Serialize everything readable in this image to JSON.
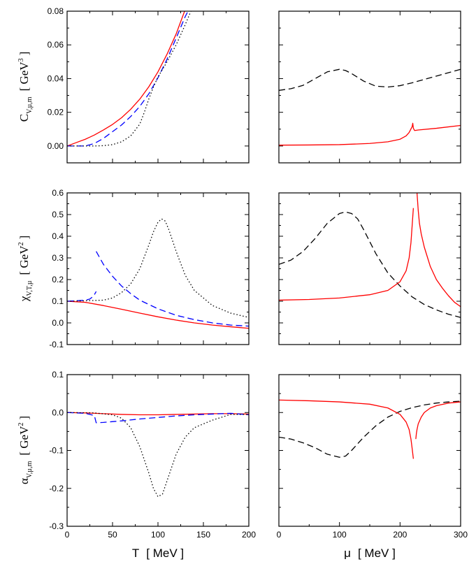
{
  "chart_data": [
    {
      "panel": "top-left",
      "type": "line",
      "ylabel": "C",
      "ylabel_sub": "V,µ,m",
      "ylabel_unit": "[ GeV",
      "ylabel_sup": "3",
      "ylabel_end": "]",
      "xlim": [
        0,
        200
      ],
      "ylim": [
        -0.01,
        0.08
      ],
      "xticks": [
        0,
        50,
        100,
        150,
        200
      ],
      "yticks": [
        0.0,
        0.02,
        0.04,
        0.06,
        0.08
      ],
      "ytick_labels": [
        "0.00",
        "0.02",
        "0.04",
        "0.06",
        "0.08"
      ],
      "series": [
        {
          "name": "C_V",
          "color": "#ff0000",
          "style": "solid",
          "x": [
            0,
            10,
            20,
            30,
            40,
            50,
            60,
            70,
            80,
            90,
            100,
            110,
            120,
            130
          ],
          "y": [
            0.0,
            0.002,
            0.004,
            0.0065,
            0.0095,
            0.0128,
            0.0168,
            0.0218,
            0.0278,
            0.0352,
            0.044,
            0.0545,
            0.0665,
            0.081
          ]
        },
        {
          "name": "C_mu",
          "color": "#0000ff",
          "style": "dashed",
          "x": [
            0,
            20,
            30,
            40,
            50,
            60,
            70,
            80,
            90,
            100,
            110,
            120,
            130,
            135
          ],
          "y": [
            0.0,
            0.0,
            0.0015,
            0.0045,
            0.0085,
            0.0125,
            0.0175,
            0.0235,
            0.031,
            0.0405,
            0.0515,
            0.064,
            0.0768,
            0.082
          ]
        },
        {
          "name": "C_m",
          "color": "#000000",
          "style": "dotted",
          "x": [
            0,
            30,
            40,
            50,
            60,
            70,
            80,
            85,
            90,
            95,
            100,
            110,
            120,
            130,
            137
          ],
          "y": [
            0.0,
            0.0,
            0.0002,
            0.0008,
            0.0025,
            0.006,
            0.013,
            0.02,
            0.028,
            0.035,
            0.041,
            0.05,
            0.06,
            0.072,
            0.081
          ]
        }
      ]
    },
    {
      "panel": "top-right",
      "type": "line",
      "xlim": [
        0,
        300
      ],
      "ylim": [
        -0.01,
        0.08
      ],
      "xticks": [
        0,
        100,
        200,
        300
      ],
      "series": [
        {
          "name": "dashed",
          "color": "#000000",
          "style": "dashed",
          "x": [
            0,
            20,
            40,
            60,
            80,
            100,
            110,
            120,
            140,
            160,
            180,
            200,
            220,
            240,
            260,
            280,
            300
          ],
          "y": [
            0.033,
            0.034,
            0.036,
            0.04,
            0.044,
            0.0455,
            0.0448,
            0.043,
            0.0385,
            0.0355,
            0.035,
            0.0358,
            0.0375,
            0.0395,
            0.0415,
            0.0435,
            0.0455
          ]
        },
        {
          "name": "solid",
          "color": "#ff0000",
          "style": "solid",
          "x": [
            0,
            50,
            100,
            150,
            180,
            200,
            210,
            215,
            220,
            221,
            222,
            224,
            230,
            260,
            300
          ],
          "y": [
            0.0005,
            0.0006,
            0.0008,
            0.0015,
            0.0025,
            0.004,
            0.006,
            0.008,
            0.0115,
            0.0135,
            0.0105,
            0.0092,
            0.0095,
            0.0105,
            0.0122
          ]
        }
      ]
    },
    {
      "panel": "middle-left",
      "type": "line",
      "ylabel": "χ",
      "ylabel_sub": "V,T,µ",
      "ylabel_unit": "[ GeV",
      "ylabel_sup": "2",
      "ylabel_end": "]",
      "xlim": [
        0,
        200
      ],
      "ylim": [
        -0.1,
        0.6
      ],
      "xticks": [
        0,
        50,
        100,
        150,
        200
      ],
      "yticks": [
        -0.1,
        0.0,
        0.1,
        0.2,
        0.3,
        0.4,
        0.5,
        0.6
      ],
      "ytick_labels": [
        "-0.1",
        "0.0",
        "0.1",
        "0.2",
        "0.3",
        "0.4",
        "0.5",
        "0.6"
      ],
      "series": [
        {
          "name": "chi_V",
          "color": "#ff0000",
          "style": "solid",
          "x": [
            0,
            20,
            40,
            60,
            80,
            100,
            120,
            140,
            160,
            180,
            200
          ],
          "y": [
            0.1,
            0.095,
            0.08,
            0.063,
            0.045,
            0.028,
            0.013,
            0.0,
            -0.01,
            -0.018,
            -0.025
          ]
        },
        {
          "name": "chi_mu_lower",
          "color": "#0000ff",
          "style": "dashed",
          "x": [
            0,
            10,
            20,
            25,
            28,
            30,
            32
          ],
          "y": [
            0.1,
            0.102,
            0.105,
            0.11,
            0.12,
            0.13,
            0.145
          ]
        },
        {
          "name": "chi_mu_upper",
          "color": "#0000ff",
          "style": "dashed",
          "x": [
            32,
            40,
            50,
            60,
            70,
            80,
            100,
            120,
            140,
            160,
            180,
            200
          ],
          "y": [
            0.33,
            0.27,
            0.215,
            0.17,
            0.135,
            0.105,
            0.065,
            0.035,
            0.015,
            0.0,
            -0.01,
            -0.015
          ]
        },
        {
          "name": "chi_T",
          "color": "#000000",
          "style": "dotted",
          "x": [
            0,
            20,
            40,
            50,
            60,
            70,
            80,
            90,
            95,
            100,
            104,
            108,
            112,
            120,
            130,
            140,
            160,
            180,
            200
          ],
          "y": [
            0.1,
            0.102,
            0.105,
            0.115,
            0.14,
            0.18,
            0.25,
            0.36,
            0.42,
            0.465,
            0.48,
            0.47,
            0.43,
            0.33,
            0.22,
            0.15,
            0.08,
            0.045,
            0.025
          ]
        }
      ]
    },
    {
      "panel": "middle-right",
      "type": "line",
      "xlim": [
        0,
        300
      ],
      "ylim": [
        -0.1,
        0.6
      ],
      "xticks": [
        0,
        100,
        200,
        300
      ],
      "series": [
        {
          "name": "dashed",
          "color": "#000000",
          "style": "dashed",
          "x": [
            0,
            20,
            40,
            60,
            80,
            100,
            110,
            120,
            130,
            140,
            160,
            180,
            200,
            220,
            240,
            260,
            280,
            300
          ],
          "y": [
            0.27,
            0.29,
            0.33,
            0.39,
            0.46,
            0.505,
            0.512,
            0.505,
            0.48,
            0.43,
            0.32,
            0.23,
            0.17,
            0.12,
            0.085,
            0.06,
            0.04,
            0.025
          ]
        },
        {
          "name": "solid_left",
          "color": "#ff0000",
          "style": "solid",
          "x": [
            0,
            50,
            100,
            150,
            180,
            200,
            210,
            215,
            218,
            220,
            222
          ],
          "y": [
            0.105,
            0.108,
            0.115,
            0.13,
            0.15,
            0.19,
            0.24,
            0.3,
            0.37,
            0.45,
            0.53
          ]
        },
        {
          "name": "solid_right",
          "color": "#ff0000",
          "style": "solid",
          "x": [
            228,
            230,
            232,
            235,
            240,
            250,
            260,
            270,
            280,
            290,
            300
          ],
          "y": [
            0.6,
            0.52,
            0.46,
            0.41,
            0.35,
            0.26,
            0.2,
            0.16,
            0.125,
            0.095,
            0.075
          ]
        }
      ]
    },
    {
      "panel": "bottom-left",
      "type": "line",
      "ylabel": "α",
      "ylabel_sub": "V,µ,m",
      "ylabel_unit": "[ GeV",
      "ylabel_sup": "2",
      "ylabel_end": "]",
      "xlim": [
        0,
        200
      ],
      "ylim": [
        -0.3,
        0.1
      ],
      "xticks": [
        0,
        50,
        100,
        150,
        200
      ],
      "xtick_labels": [
        "0",
        "50",
        "100",
        "150",
        "200"
      ],
      "yticks": [
        -0.3,
        -0.2,
        -0.1,
        0.0,
        0.1
      ],
      "ytick_labels": [
        "-0.3",
        "-0.2",
        "-0.1",
        "0.0",
        "0.1"
      ],
      "xlabel": "T",
      "xlabel_unit": "[ MeV ]",
      "series": [
        {
          "name": "alpha_V",
          "color": "#ff0000",
          "style": "solid",
          "x": [
            0,
            20,
            40,
            60,
            80,
            100,
            120,
            140,
            160,
            180,
            200
          ],
          "y": [
            0.0,
            -0.001,
            -0.003,
            -0.005,
            -0.006,
            -0.006,
            -0.005,
            -0.004,
            -0.003,
            -0.003,
            -0.004
          ]
        },
        {
          "name": "alpha_mu",
          "color": "#0000ff",
          "style": "dashed",
          "x": [
            0,
            20,
            30,
            32,
            40,
            60,
            80,
            100,
            120,
            140,
            160,
            180,
            200
          ],
          "y": [
            0.0,
            -0.002,
            -0.008,
            -0.027,
            -0.026,
            -0.022,
            -0.017,
            -0.013,
            -0.009,
            -0.006,
            -0.004,
            -0.002,
            -0.006
          ]
        },
        {
          "name": "alpha_m",
          "color": "#000000",
          "style": "dotted",
          "x": [
            0,
            30,
            50,
            60,
            70,
            80,
            90,
            95,
            100,
            105,
            110,
            120,
            130,
            140,
            160,
            180,
            200
          ],
          "y": [
            0.0,
            -0.001,
            -0.006,
            -0.015,
            -0.04,
            -0.09,
            -0.16,
            -0.2,
            -0.222,
            -0.215,
            -0.18,
            -0.11,
            -0.065,
            -0.04,
            -0.02,
            -0.005,
            -0.005
          ]
        }
      ]
    },
    {
      "panel": "bottom-right",
      "type": "line",
      "xlim": [
        0,
        300
      ],
      "ylim": [
        -0.3,
        0.1
      ],
      "xticks": [
        0,
        100,
        200,
        300
      ],
      "xtick_labels": [
        "0",
        "100",
        "200",
        "300"
      ],
      "xlabel": "μ",
      "xlabel_unit": "[ MeV ]",
      "series": [
        {
          "name": "dashed",
          "color": "#000000",
          "style": "dashed",
          "x": [
            0,
            20,
            40,
            60,
            80,
            100,
            110,
            120,
            140,
            160,
            180,
            200,
            220,
            240,
            260,
            280,
            300
          ],
          "y": [
            -0.065,
            -0.07,
            -0.08,
            -0.093,
            -0.11,
            -0.118,
            -0.115,
            -0.1,
            -0.065,
            -0.035,
            -0.012,
            0.003,
            0.013,
            0.02,
            0.025,
            0.028,
            0.03
          ]
        },
        {
          "name": "solid_left",
          "color": "#ff0000",
          "style": "solid",
          "x": [
            0,
            50,
            100,
            150,
            180,
            200,
            210,
            215,
            218,
            220,
            222
          ],
          "y": [
            0.033,
            0.031,
            0.028,
            0.022,
            0.012,
            -0.005,
            -0.025,
            -0.045,
            -0.07,
            -0.095,
            -0.122
          ]
        },
        {
          "name": "solid_right",
          "color": "#ff0000",
          "style": "solid",
          "x": [
            226,
            227,
            228,
            230,
            235,
            240,
            250,
            260,
            280,
            300
          ],
          "y": [
            -0.07,
            -0.055,
            -0.045,
            -0.03,
            -0.012,
            0.0,
            0.012,
            0.018,
            0.025,
            0.028
          ]
        }
      ]
    }
  ]
}
